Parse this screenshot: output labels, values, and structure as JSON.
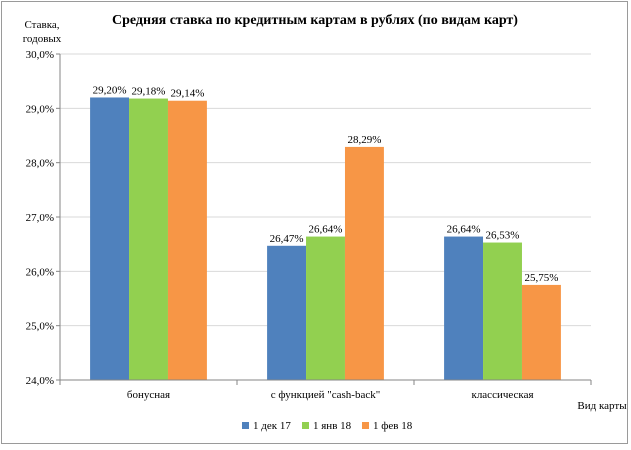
{
  "chart_data": {
    "type": "bar",
    "title": "Средняя ставка по кредитным картам в рублях (по видам карт)",
    "ylabel_lines": [
      "Ставка,",
      "годовых"
    ],
    "xlabel": "Вид карты",
    "categories": [
      "бонусная",
      "с функцией \"cash-back\"",
      "классическая"
    ],
    "series": [
      {
        "name": "1 дек 17",
        "color": "#4f81bd",
        "values": [
          29.2,
          26.47,
          26.64
        ],
        "labels": [
          "29,20%",
          "26,47%",
          "26,64%"
        ]
      },
      {
        "name": "1 янв 18",
        "color": "#92d050",
        "values": [
          29.18,
          26.64,
          26.53
        ],
        "labels": [
          "29,18%",
          "26,64%",
          "26,53%"
        ]
      },
      {
        "name": "1 фев 18",
        "color": "#f79646",
        "values": [
          29.14,
          28.29,
          25.75
        ],
        "labels": [
          "29,14%",
          "28,29%",
          "25,75%"
        ]
      }
    ],
    "ylim": [
      24.0,
      30.0
    ],
    "yticks": [
      24.0,
      25.0,
      26.0,
      27.0,
      28.0,
      29.0,
      30.0
    ],
    "ytick_labels": [
      "24,0%",
      "25,0%",
      "26,0%",
      "27,0%",
      "28,0%",
      "29,0%",
      "30,0%"
    ],
    "grid": true,
    "legend_position": "bottom"
  }
}
